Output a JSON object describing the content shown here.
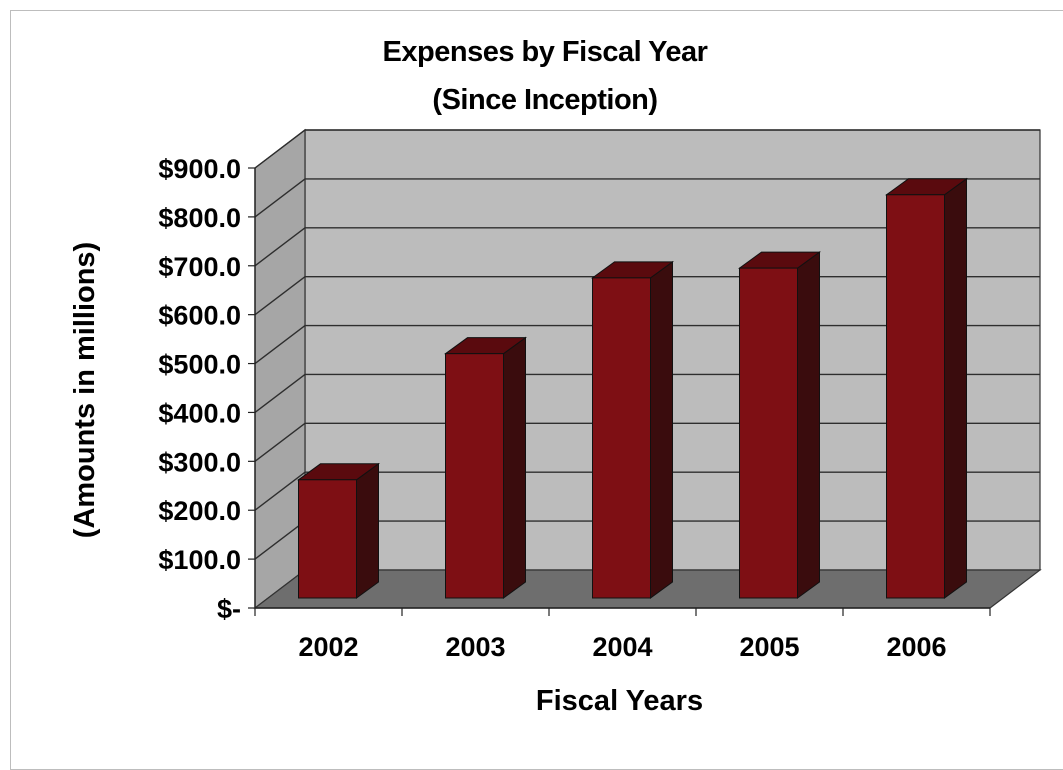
{
  "chart_data": {
    "type": "bar",
    "title": "Expenses by Fiscal Year",
    "subtitle": "(Since Inception)",
    "xlabel": "Fiscal Years",
    "ylabel": "(Amounts in millions)",
    "categories": [
      "2002",
      "2003",
      "2004",
      "2005",
      "2006"
    ],
    "values": [
      252,
      510,
      665,
      685,
      835
    ],
    "ylim": [
      0,
      900
    ],
    "yticks": [
      0,
      100,
      200,
      300,
      400,
      500,
      600,
      700,
      800,
      900
    ],
    "ytick_labels": [
      "$-",
      "$100.0",
      "$200.0",
      "$300.0",
      "$400.0",
      "$500.0",
      "$600.0",
      "$700.0",
      "$800.0",
      "$900.0"
    ],
    "grid": true,
    "legend": "none",
    "colors": {
      "bar_front": "#7e0f14",
      "bar_side": "#3a0c0d",
      "bar_top": "#5a0a0e",
      "wall": "#bcbcbc",
      "side_wall": "#a6a6a6",
      "floor": "#6e6e6e"
    }
  }
}
